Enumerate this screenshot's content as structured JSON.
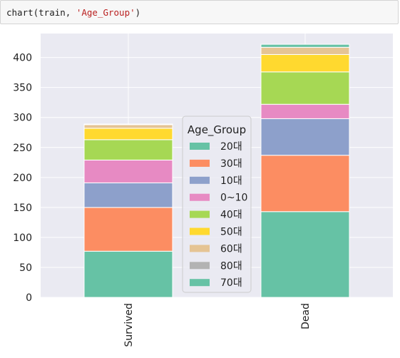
{
  "code_cell": {
    "prefix": "chart(train, ",
    "string_arg": "'Age_Group'",
    "suffix": ")"
  },
  "chart_data": {
    "type": "bar",
    "stacked": true,
    "categories": [
      "Survived",
      "Dead"
    ],
    "ylim": [
      0,
      440
    ],
    "yticks": [
      0,
      50,
      100,
      150,
      200,
      250,
      300,
      350,
      400
    ],
    "grid": true,
    "legend": {
      "title": "Age_Group",
      "placement": "center"
    },
    "series": [
      {
        "name": "20대",
        "color": "#66c2a5",
        "values": [
          77,
          143
        ]
      },
      {
        "name": "30대",
        "color": "#fc8d62",
        "values": [
          73,
          94
        ]
      },
      {
        "name": "10대",
        "color": "#8da0cb",
        "values": [
          41,
          61
        ]
      },
      {
        "name": "0~10",
        "color": "#e78ac3",
        "values": [
          38,
          24
        ]
      },
      {
        "name": "40대",
        "color": "#a6d854",
        "values": [
          34,
          54
        ]
      },
      {
        "name": "50대",
        "color": "#ffd92f",
        "values": [
          19,
          29
        ]
      },
      {
        "name": "60대",
        "color": "#e5c494",
        "values": [
          6,
          12
        ]
      },
      {
        "name": "80대",
        "color": "#b3b3b3",
        "values": [
          1,
          0
        ]
      },
      {
        "name": "70대",
        "color": "#66c2a5",
        "values": [
          0,
          5
        ]
      }
    ]
  }
}
